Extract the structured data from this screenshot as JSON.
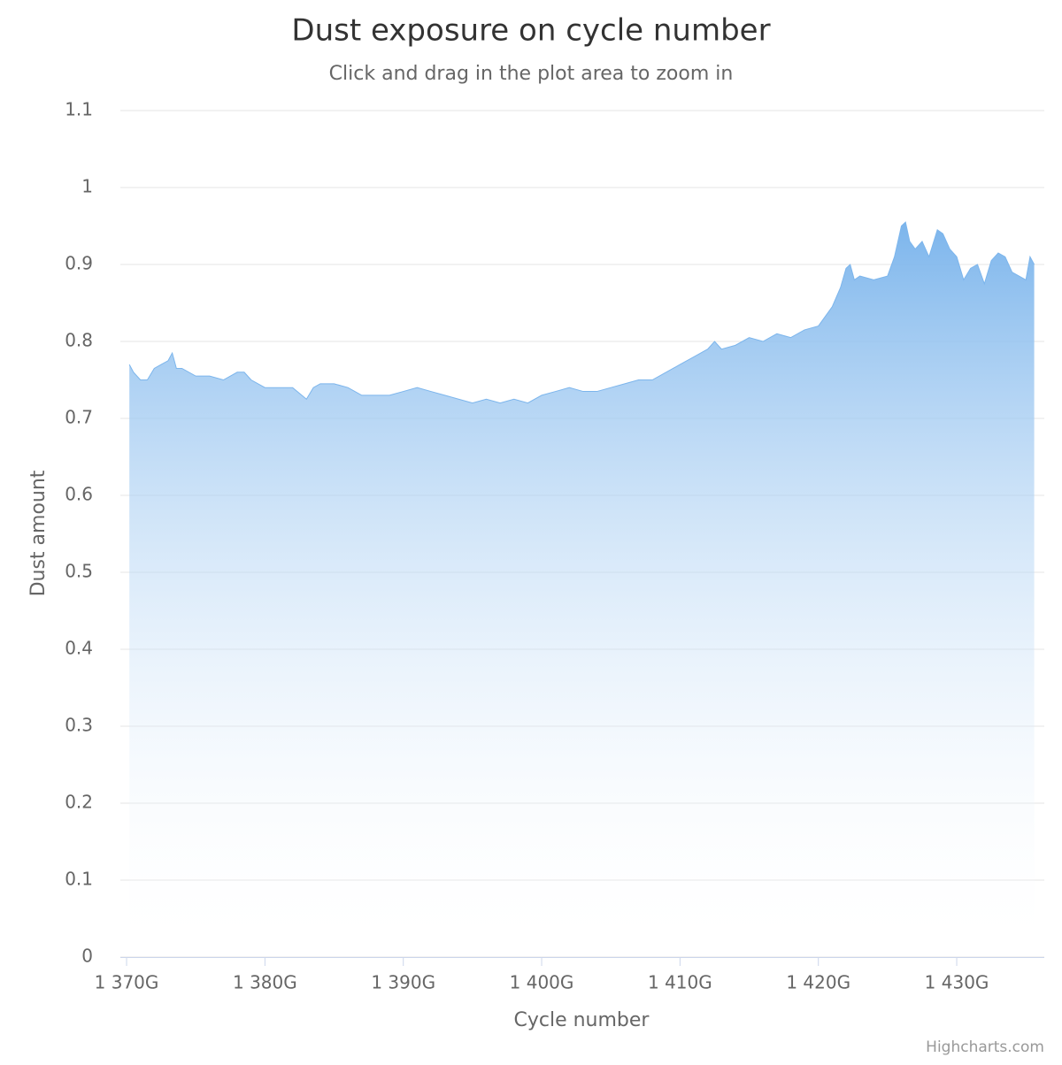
{
  "chart_data": {
    "type": "area",
    "title": "Dust exposure on cycle number",
    "subtitle": "Click and drag in the plot area to zoom in",
    "x_label": "Cycle number",
    "y_label": "Dust amount",
    "credits": "Highcharts.com",
    "color": "#7cb5ec",
    "grid": true,
    "xlim": [
      1369.55,
      1436.33
    ],
    "ylim": [
      0,
      1.1
    ],
    "xticks": [
      {
        "value": 1370,
        "label": "1 370G"
      },
      {
        "value": 1380,
        "label": "1 380G"
      },
      {
        "value": 1390,
        "label": "1 390G"
      },
      {
        "value": 1400,
        "label": "1 400G"
      },
      {
        "value": 1410,
        "label": "1 410G"
      },
      {
        "value": 1420,
        "label": "1 420G"
      },
      {
        "value": 1430,
        "label": "1 430G"
      }
    ],
    "yticks": [
      0,
      0.1,
      0.2,
      0.3,
      0.4,
      0.5,
      0.6,
      0.7,
      0.8,
      0.9,
      1,
      1.1
    ],
    "x": [
      1370.2,
      1370.5,
      1371,
      1371.5,
      1372,
      1372.5,
      1373,
      1373.3,
      1373.6,
      1374,
      1375,
      1376,
      1377,
      1378,
      1378.5,
      1379,
      1380,
      1381,
      1382,
      1383,
      1383.5,
      1384,
      1385,
      1386,
      1387,
      1388,
      1389,
      1390,
      1391,
      1392,
      1393,
      1394,
      1395,
      1396,
      1397,
      1398,
      1399,
      1400,
      1401,
      1402,
      1403,
      1404,
      1405,
      1406,
      1407,
      1408,
      1409,
      1410,
      1411,
      1412,
      1412.5,
      1413,
      1414,
      1415,
      1416,
      1417,
      1418,
      1419,
      1420,
      1421,
      1421.6,
      1422,
      1422.3,
      1422.6,
      1423,
      1424,
      1425,
      1425.5,
      1426,
      1426.3,
      1426.6,
      1427,
      1427.5,
      1428,
      1428.6,
      1429,
      1429.5,
      1430,
      1430.5,
      1431,
      1431.5,
      1432,
      1432.5,
      1433,
      1433.5,
      1434,
      1434.5,
      1435,
      1435.3,
      1435.6
    ],
    "values": [
      0.77,
      0.76,
      0.75,
      0.75,
      0.765,
      0.77,
      0.775,
      0.785,
      0.765,
      0.765,
      0.755,
      0.755,
      0.75,
      0.76,
      0.76,
      0.75,
      0.74,
      0.74,
      0.74,
      0.725,
      0.74,
      0.745,
      0.745,
      0.74,
      0.73,
      0.73,
      0.73,
      0.735,
      0.74,
      0.735,
      0.73,
      0.725,
      0.72,
      0.725,
      0.72,
      0.725,
      0.72,
      0.73,
      0.735,
      0.74,
      0.735,
      0.735,
      0.74,
      0.745,
      0.75,
      0.75,
      0.76,
      0.77,
      0.78,
      0.79,
      0.8,
      0.79,
      0.795,
      0.805,
      0.8,
      0.81,
      0.805,
      0.815,
      0.82,
      0.845,
      0.87,
      0.895,
      0.9,
      0.88,
      0.885,
      0.88,
      0.885,
      0.91,
      0.95,
      0.955,
      0.93,
      0.92,
      0.93,
      0.91,
      0.945,
      0.94,
      0.92,
      0.91,
      0.88,
      0.895,
      0.9,
      0.875,
      0.905,
      0.915,
      0.91,
      0.89,
      0.885,
      0.88,
      0.91,
      0.9
    ]
  }
}
